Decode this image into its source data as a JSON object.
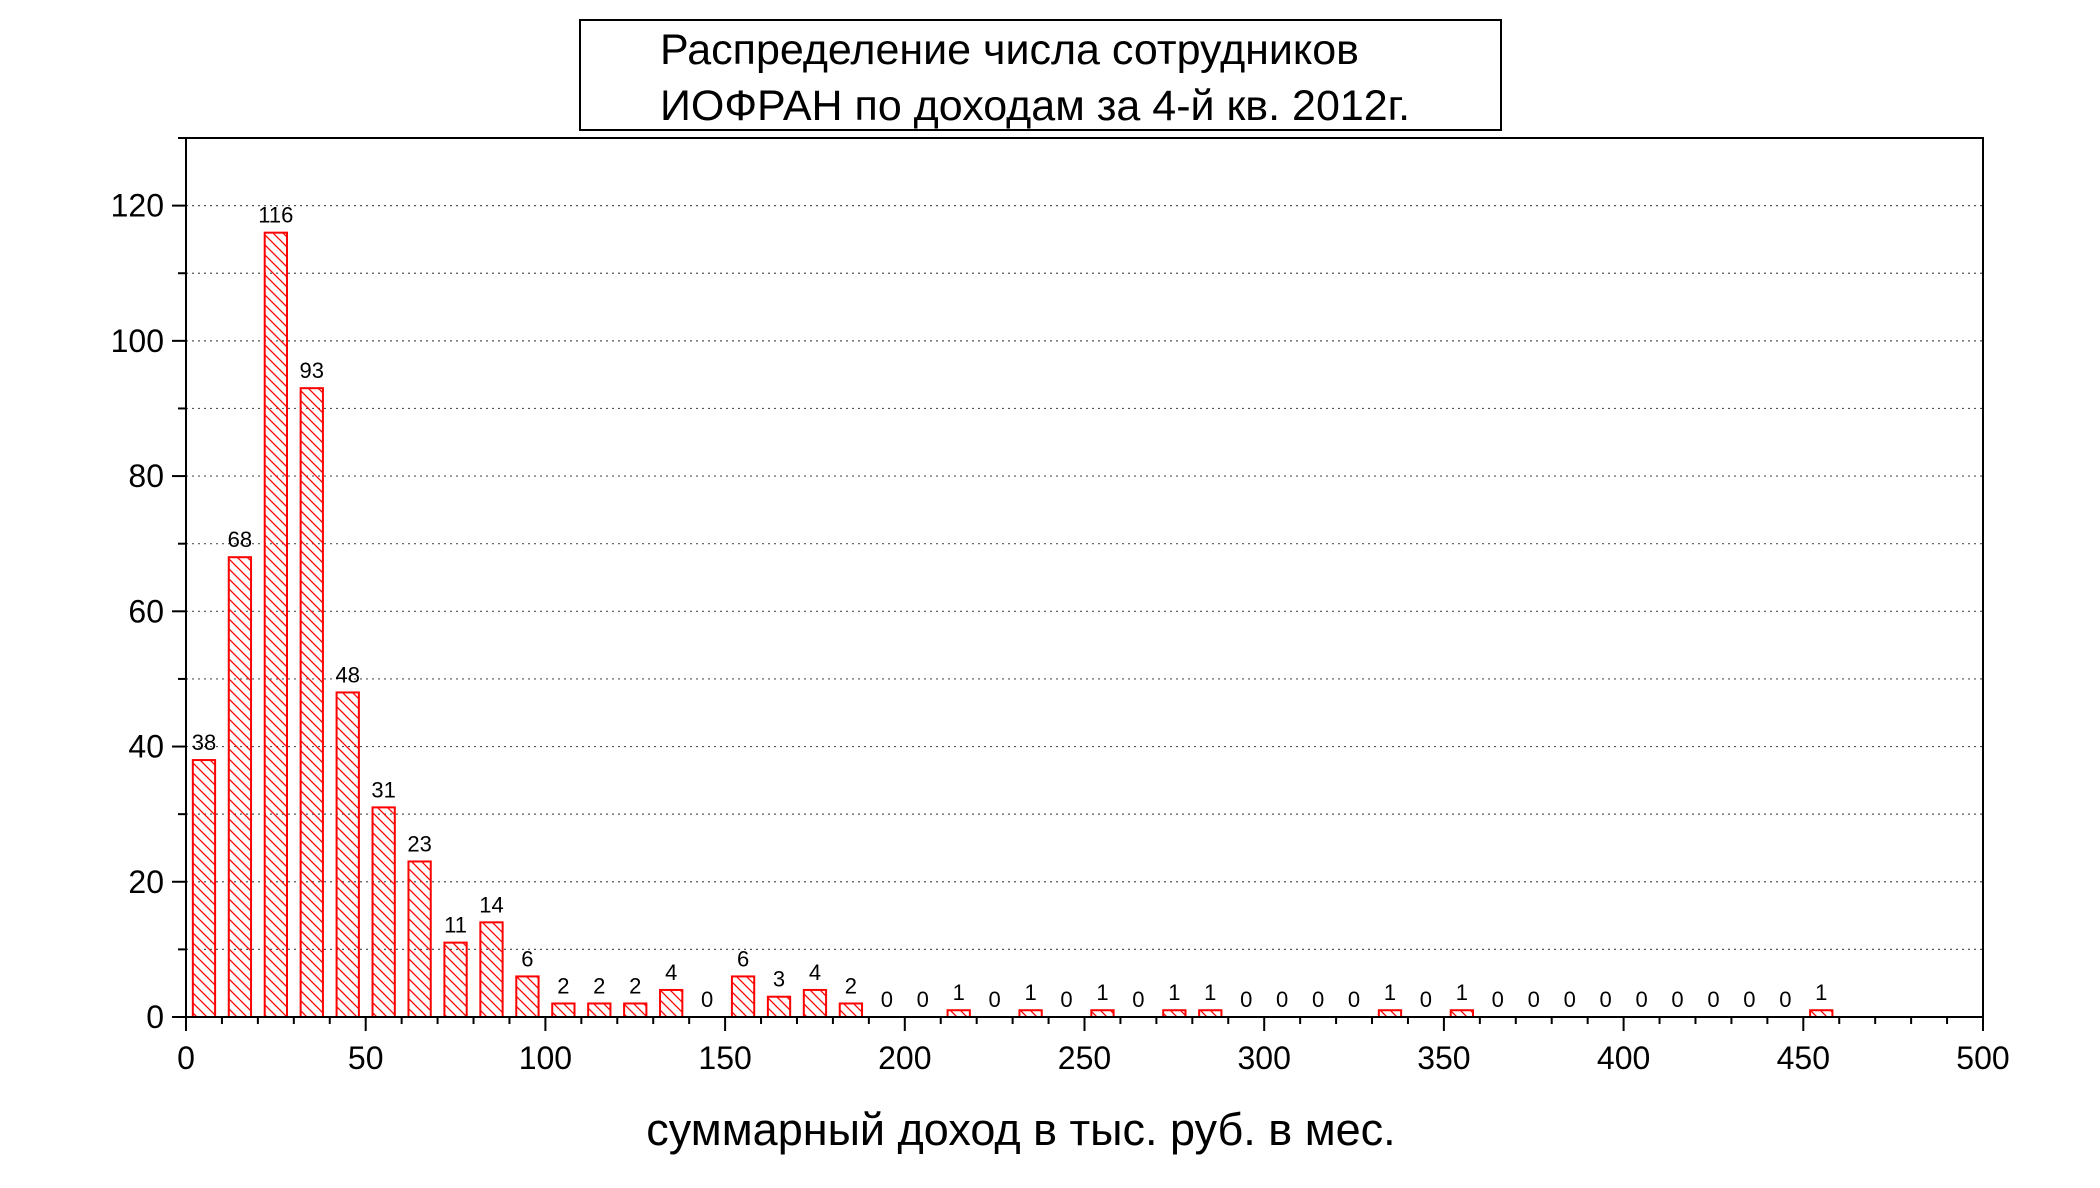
{
  "chart_data": {
    "type": "bar",
    "title_lines": [
      "Распределение числа сотрудников",
      "ИОФРАН по доходам за 4-й кв. 2012г."
    ],
    "xlabel": "суммарный доход в тыс. руб. в мес.",
    "ylabel": "",
    "xlim": [
      0,
      500
    ],
    "ylim": [
      0,
      130
    ],
    "x_ticks": [
      0,
      50,
      100,
      150,
      200,
      250,
      300,
      350,
      400,
      450,
      500
    ],
    "y_ticks": [
      0,
      20,
      40,
      60,
      80,
      100,
      120
    ],
    "bin_width": 10,
    "x": [
      5,
      15,
      25,
      35,
      45,
      55,
      65,
      75,
      85,
      95,
      105,
      115,
      125,
      135,
      145,
      155,
      165,
      175,
      185,
      195,
      205,
      215,
      225,
      235,
      245,
      255,
      265,
      275,
      285,
      295,
      305,
      315,
      325,
      335,
      345,
      355,
      365,
      375,
      385,
      395,
      405,
      415,
      425,
      435,
      445,
      455
    ],
    "values": [
      38,
      68,
      116,
      93,
      48,
      31,
      23,
      11,
      14,
      6,
      2,
      2,
      2,
      4,
      0,
      6,
      3,
      4,
      2,
      0,
      0,
      1,
      0,
      1,
      0,
      1,
      0,
      1,
      1,
      0,
      0,
      0,
      0,
      1,
      0,
      1,
      0,
      0,
      0,
      0,
      0,
      0,
      0,
      0,
      0,
      1
    ],
    "bar_color": "#ff0000",
    "fill_pattern": "diagonal-hatch",
    "grid": "dotted horizontal",
    "legend": "none"
  }
}
